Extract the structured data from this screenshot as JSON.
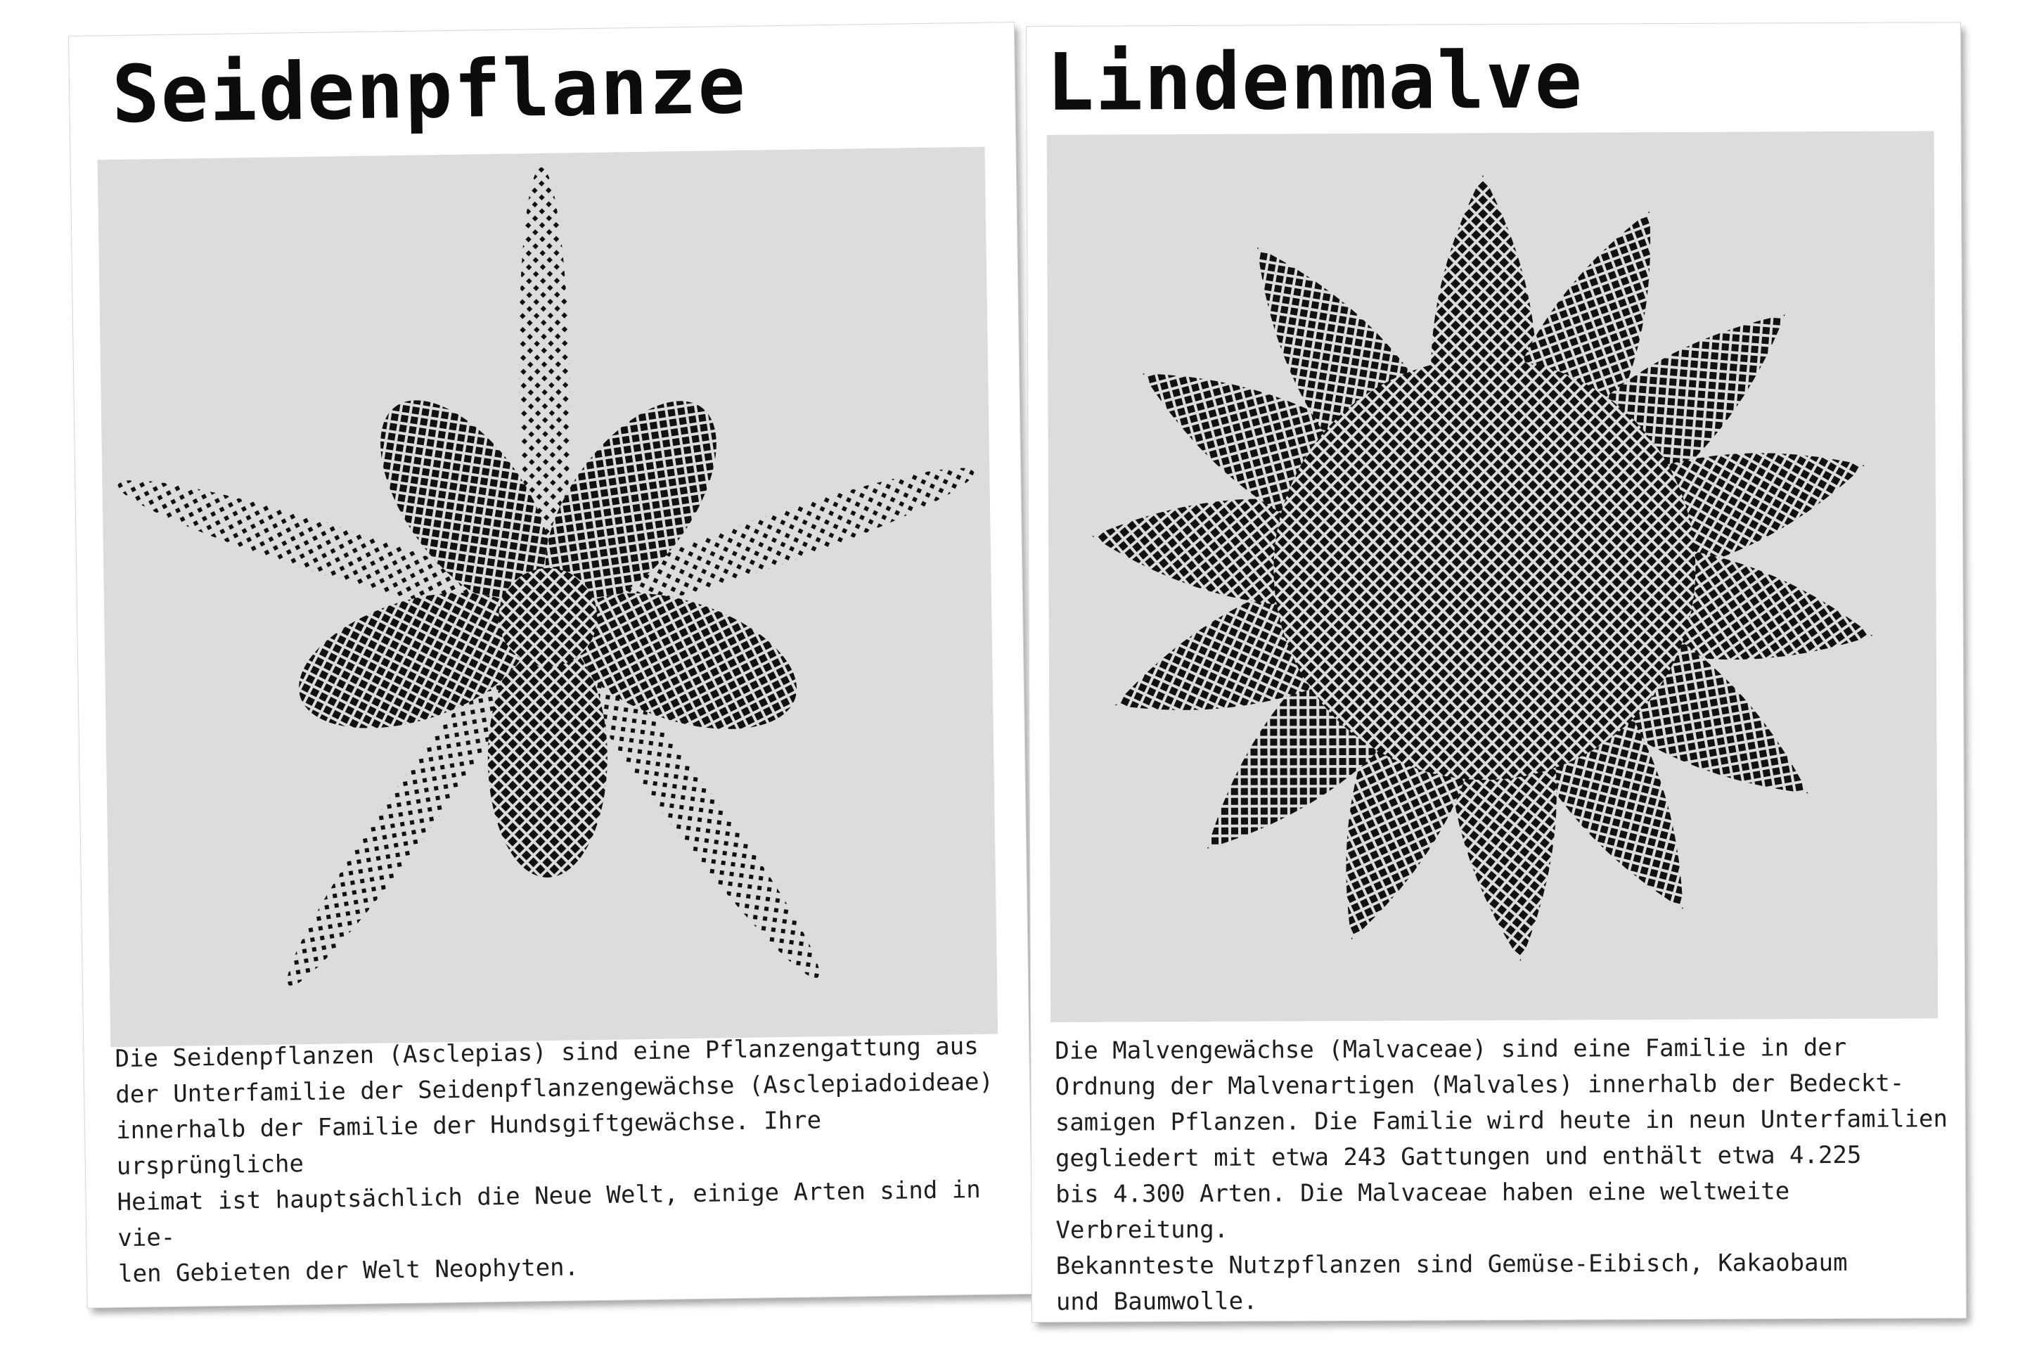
{
  "cards": [
    {
      "title": "Seidenpflanze",
      "description": "Die Seidenpflanzen (Asclepias) sind eine Pflanzengattung aus\nder Unterfamilie der Seidenpflanzengewächse (Asclepiadoideae)\ninnerhalb der Familie der Hundsgiftgewächse. Ihre ursprüngliche\nHeimat ist hauptsächlich die Neue Welt, einige Arten sind in vie-\nlen Gebieten der Welt Neophyten.",
      "image_icon": "seidenpflanze-leaves-halftone-icon"
    },
    {
      "title": "Lindenmalve",
      "description": "Die Malvengewächse (Malvaceae) sind eine Familie in der\nOrdnung der Malvenartigen (Malvales) innerhalb der Bedeckt-\nsamigen Pflanzen. Die Familie wird heute in neun Unterfamilien\ngegliedert mit etwa 243 Gattungen und enthält etwa 4.225\nbis 4.300 Arten. Die Malvaceae haben eine weltweite Verbreitung.\nBekannteste Nutzpflanzen sind Gemüse-Eibisch, Kakaobaum\nund Baumwolle.",
      "image_icon": "lindenmalve-rosette-halftone-icon"
    }
  ],
  "colors": {
    "page": "#ffffff",
    "card": "#ffffff",
    "photo_background": "#dcdcdc",
    "halftone": "#111111",
    "text": "#1e1e1e"
  }
}
